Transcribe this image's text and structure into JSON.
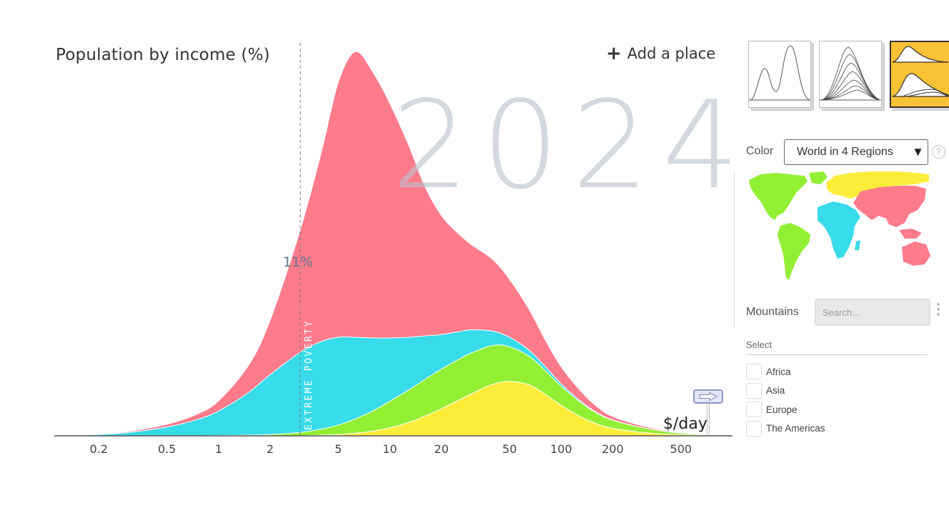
{
  "header": {
    "title": "Population by income (%)",
    "add_place_label": "Add a place"
  },
  "year": "2024",
  "colors": {
    "asia": "#fe7b8c",
    "africa": "#37dbe9",
    "americas": "#93ef34",
    "europe": "#fded3b",
    "background": "#ffffff",
    "view_active": "#fbc235"
  },
  "chart_data": {
    "type": "area",
    "stacked": true,
    "x_scale": "log",
    "xlim": [
      0.11,
      1000
    ],
    "ylim": [
      0,
      11.6
    ],
    "xlabel": "$/day",
    "x_ticks": [
      "0.2",
      "0.5",
      "1",
      "2",
      "5",
      "10",
      "20",
      "50",
      "100",
      "200",
      "500"
    ],
    "x_tick_values": [
      0.2,
      0.5,
      1,
      2,
      5,
      10,
      20,
      50,
      100,
      200,
      500
    ],
    "extreme_poverty_line": 3,
    "extreme_poverty_label": "EXTREME POVERTY",
    "extreme_poverty_share_label": "11%",
    "x": [
      0.13,
      0.2,
      0.3,
      0.5,
      0.75,
      1,
      1.5,
      2,
      3,
      4,
      5,
      6.3,
      8,
      10,
      13,
      16,
      20,
      25,
      30,
      40,
      50,
      65,
      80,
      100,
      130,
      160,
      200,
      300,
      450,
      700
    ],
    "series": [
      {
        "name": "Europe",
        "color_key": "europe",
        "values": [
          0,
          0,
          0,
          0,
          0,
          0,
          0,
          0,
          0,
          0.02,
          0.04,
          0.08,
          0.14,
          0.24,
          0.4,
          0.58,
          0.8,
          1.04,
          1.24,
          1.52,
          1.6,
          1.5,
          1.24,
          0.9,
          0.56,
          0.36,
          0.22,
          0.1,
          0.04,
          0.01
        ]
      },
      {
        "name": "The Americas",
        "color_key": "americas",
        "values": [
          0,
          0,
          0,
          0,
          0,
          0.01,
          0.02,
          0.04,
          0.1,
          0.18,
          0.28,
          0.42,
          0.6,
          0.78,
          0.96,
          1.08,
          1.16,
          1.2,
          1.2,
          1.14,
          1.02,
          0.84,
          0.7,
          0.56,
          0.42,
          0.32,
          0.24,
          0.14,
          0.06,
          0.02
        ]
      },
      {
        "name": "Africa",
        "color_key": "africa",
        "values": [
          0.01,
          0.04,
          0.1,
          0.26,
          0.48,
          0.72,
          1.26,
          1.76,
          2.36,
          2.58,
          2.58,
          2.4,
          2.14,
          1.86,
          1.54,
          1.28,
          1.02,
          0.82,
          0.68,
          0.42,
          0.28,
          0.18,
          0.12,
          0.07,
          0.04,
          0.02,
          0.01,
          0,
          0,
          0
        ]
      },
      {
        "name": "Asia",
        "color_key": "asia",
        "values": [
          0,
          0.01,
          0.03,
          0.08,
          0.16,
          0.3,
          0.8,
          1.6,
          3.6,
          5.6,
          7.5,
          8.4,
          7.8,
          6.9,
          5.6,
          4.4,
          3.5,
          2.9,
          2.5,
          2.1,
          1.7,
          1.2,
          0.8,
          0.5,
          0.3,
          0.18,
          0.1,
          0.05,
          0.02,
          0
        ]
      }
    ]
  },
  "sidebar": {
    "color_label": "Color",
    "color_select_value": "World in 4 Regions",
    "help_icon": "question-circle-icon",
    "mountains_label": "Mountains",
    "search_placeholder": "Search...",
    "select_label": "Select",
    "regions": [
      {
        "label": "Africa"
      },
      {
        "label": "Asia"
      },
      {
        "label": "Europe"
      },
      {
        "label": "The Americas"
      }
    ]
  }
}
